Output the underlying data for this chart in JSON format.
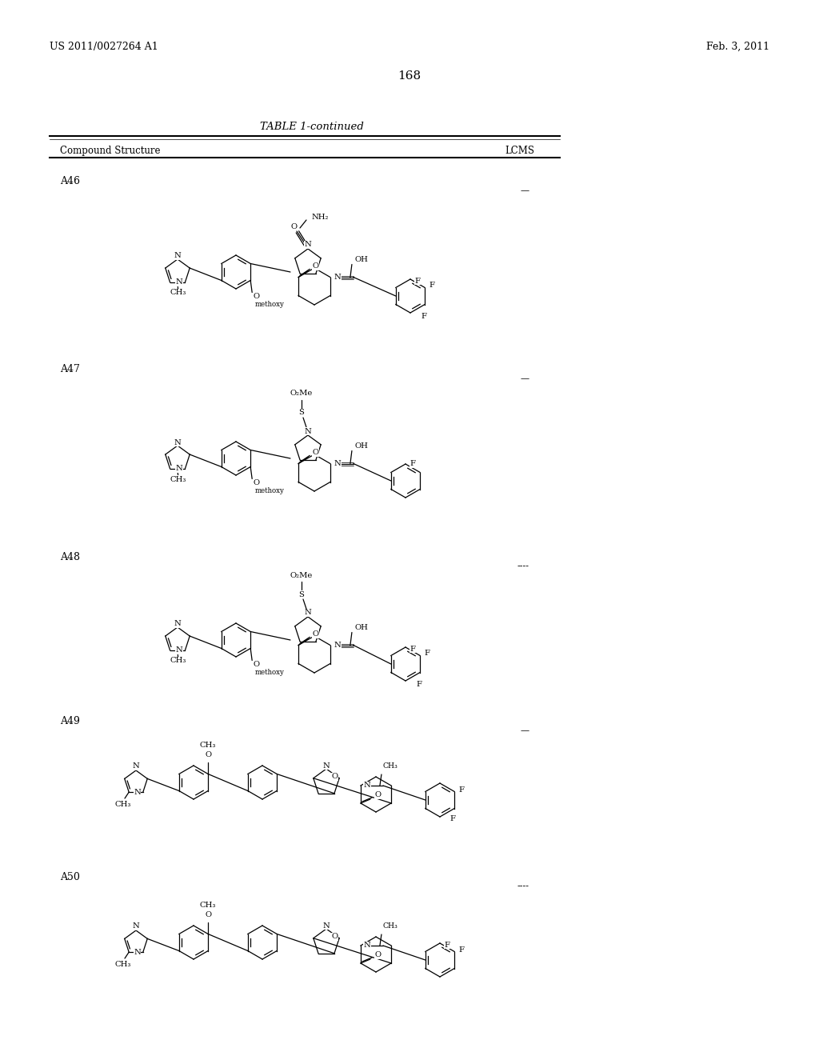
{
  "page_number": "168",
  "patent_number": "US 2011/0027264 A1",
  "patent_date": "Feb. 3, 2011",
  "table_title": "TABLE 1-continued",
  "col1_header": "Compound Structure",
  "col2_header": "LCMS",
  "background_color": "#ffffff",
  "text_color": "#000000",
  "compounds": [
    "A46",
    "A47",
    "A48",
    "A49",
    "A50"
  ],
  "lcms_values": [
    "—",
    "—",
    "----",
    "—",
    "----"
  ],
  "compound_y_tops": [
    215,
    450,
    685,
    890,
    1085
  ],
  "header_fontsize": 8.5,
  "body_fontsize": 8,
  "title_fontsize": 9.5,
  "page_num_fontsize": 11,
  "patent_fontsize": 9
}
